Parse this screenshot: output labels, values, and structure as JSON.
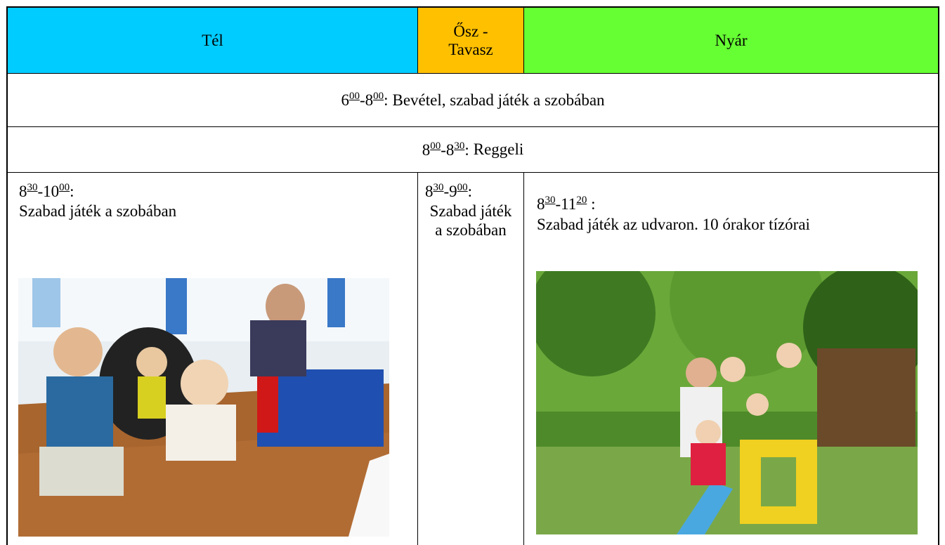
{
  "header": {
    "columns": [
      "Tél",
      "Ősz - Tavasz",
      "Nyár"
    ]
  },
  "rows": [
    {
      "time": [
        "6",
        "00",
        "-8",
        "00",
        ":"
      ],
      "text": "Bevétel, szabad játék a szobában"
    },
    {
      "time": [
        "8",
        "00",
        "-8",
        "30",
        ":"
      ],
      "text": "Reggeli"
    },
    {
      "cells": [
        {
          "time": [
            "8",
            "30",
            "-10",
            "00",
            ":"
          ],
          "text": "Szabad játék a szobában"
        },
        {
          "time": [
            "8",
            "30",
            "-9",
            "00",
            ":"
          ],
          "text": "Szabad játék a szobában"
        },
        {
          "time": [
            "8",
            "30",
            "-11",
            "20",
            " :"
          ],
          "text": "Szabad játék az udvaron. 10 órakor tízórai"
        }
      ]
    }
  ]
}
